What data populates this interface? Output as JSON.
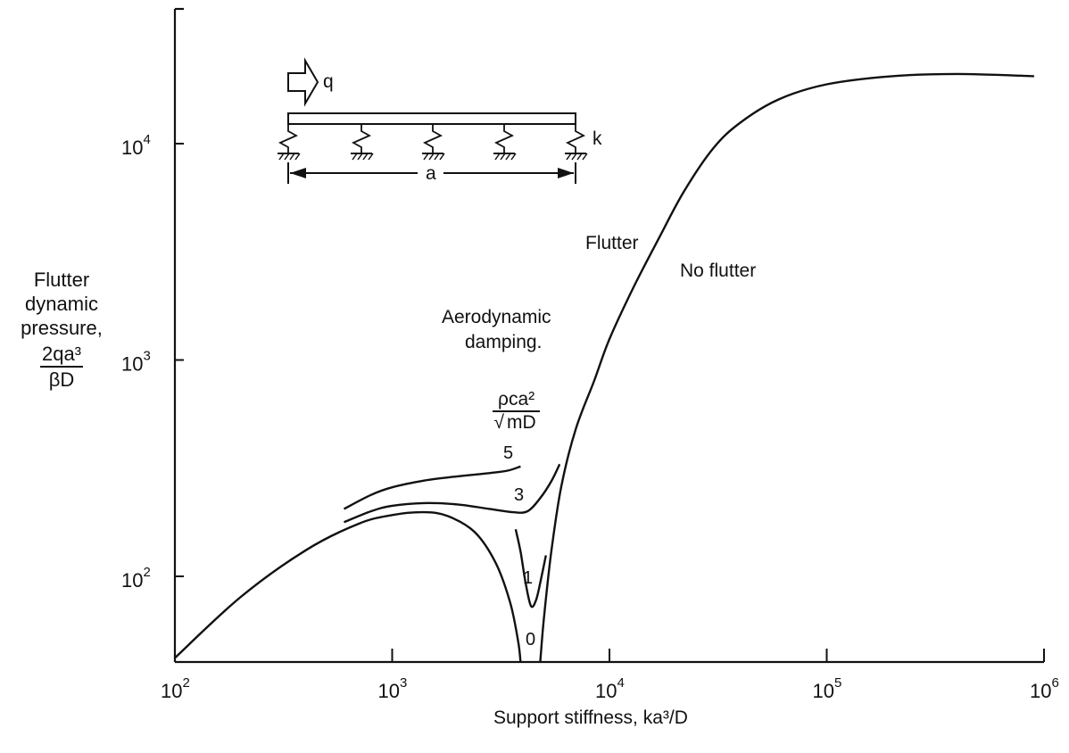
{
  "chart_data": {
    "type": "line",
    "xscale": "log",
    "yscale": "log",
    "xlim": [
      100,
      1000000
    ],
    "ylim": [
      40,
      30000
    ],
    "grid": false,
    "xlabel": "Support stiffness, ka³/D",
    "ylabel": {
      "line1": "Flutter",
      "line2": "dynamic",
      "line3": "pressure,",
      "numerator": "2qa³",
      "denominator": "βD"
    },
    "x_ticks": [
      {
        "base": "10",
        "exp": "2",
        "value": 100
      },
      {
        "base": "10",
        "exp": "3",
        "value": 1000
      },
      {
        "base": "10",
        "exp": "4",
        "value": 10000
      },
      {
        "base": "10",
        "exp": "5",
        "value": 100000
      },
      {
        "base": "10",
        "exp": "6",
        "value": 1000000
      }
    ],
    "y_ticks": [
      {
        "base": "10",
        "exp": "2",
        "value": 100
      },
      {
        "base": "10",
        "exp": "3",
        "value": 1000
      },
      {
        "base": "10",
        "exp": "4",
        "value": 10000
      }
    ],
    "annotations": {
      "flutter": "Flutter",
      "no_flutter": "No flutter",
      "damping_title_1": "Aerodynamic",
      "damping_title_2": "damping.",
      "damping_numerator": "ρca²",
      "damping_denominator": "mD"
    },
    "series": [
      {
        "label": "0",
        "points": [
          [
            100,
            42
          ],
          [
            200,
            80
          ],
          [
            400,
            132
          ],
          [
            700,
            175
          ],
          [
            1000,
            192
          ],
          [
            1400,
            198
          ],
          [
            1800,
            190
          ],
          [
            2400,
            160
          ],
          [
            3000,
            115
          ],
          [
            3500,
            75
          ],
          [
            3800,
            50
          ],
          [
            3900,
            40
          ]
        ]
      },
      {
        "label": "0",
        "points": [
          [
            4800,
            40
          ],
          [
            5000,
            65
          ],
          [
            5400,
            130
          ],
          [
            6000,
            260
          ],
          [
            7000,
            480
          ],
          [
            8500,
            800
          ],
          [
            10000,
            1250
          ],
          [
            13000,
            2200
          ],
          [
            17000,
            3700
          ],
          [
            22000,
            6000
          ],
          [
            30000,
            9500
          ],
          [
            40000,
            12500
          ],
          [
            60000,
            16000
          ],
          [
            100000,
            18800
          ],
          [
            200000,
            20500
          ],
          [
            400000,
            21000
          ],
          [
            900000,
            20500
          ]
        ]
      },
      {
        "label": "1",
        "points": [
          [
            3700,
            165
          ],
          [
            3900,
            130
          ],
          [
            4100,
            95
          ],
          [
            4350,
            73
          ],
          [
            4600,
            78
          ],
          [
            4850,
            98
          ],
          [
            5100,
            125
          ]
        ]
      },
      {
        "label": "3",
        "points": [
          [
            600,
            178
          ],
          [
            800,
            200
          ],
          [
            1000,
            212
          ],
          [
            1400,
            218
          ],
          [
            2000,
            215
          ],
          [
            2800,
            205
          ],
          [
            3600,
            198
          ],
          [
            4200,
            200
          ],
          [
            4800,
            230
          ],
          [
            5400,
            275
          ],
          [
            5900,
            330
          ]
        ]
      },
      {
        "label": "5",
        "points": [
          [
            600,
            205
          ],
          [
            800,
            238
          ],
          [
            1000,
            258
          ],
          [
            1400,
            277
          ],
          [
            2000,
            290
          ],
          [
            2800,
            300
          ],
          [
            3400,
            308
          ],
          [
            3900,
            322
          ]
        ]
      }
    ],
    "curve_labels": [
      "5",
      "3",
      "1",
      "0"
    ]
  },
  "inset": {
    "flow_label": "q",
    "spring_label": "k",
    "length_label": "a"
  }
}
